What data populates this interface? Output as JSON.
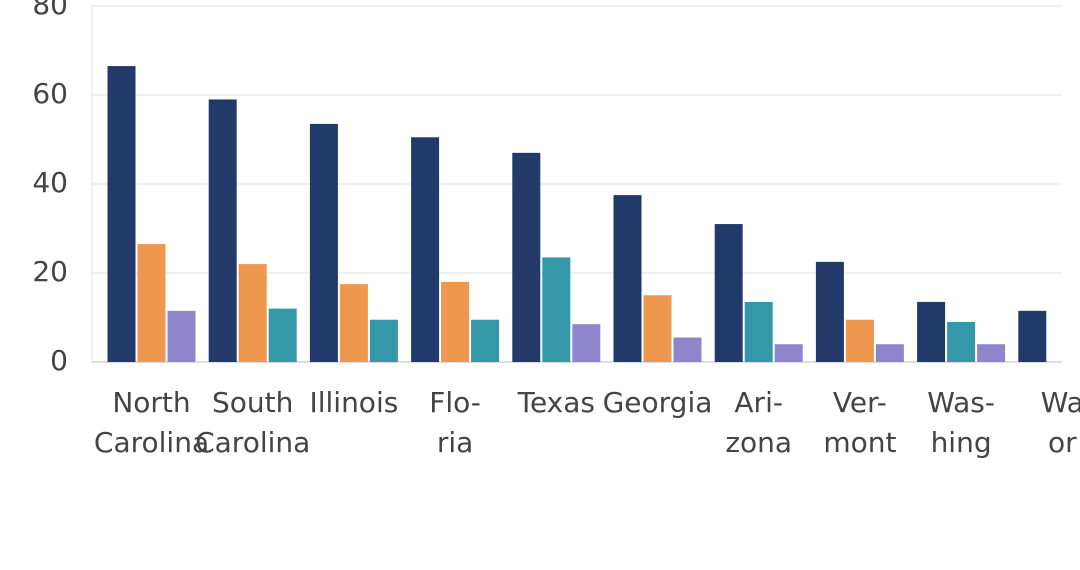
{
  "chart_data": {
    "type": "bar",
    "categories": [
      "North\nCarolina",
      "South\nCarolina",
      "Illinois",
      "Flo-\nria",
      "Texas",
      "Georgia",
      "Ari-\nzona",
      "Ver-\nmont",
      "Was-\nhing",
      "Wa\nor"
    ],
    "series": [
      {
        "colors": [
          "#213a6a",
          "#213a6a",
          "#213a6a",
          "#213a6a",
          "#213a6a",
          "#213a6a",
          "#213a6a",
          "#213a6a",
          "#213a6a",
          "#213a6a"
        ],
        "values": [
          66.5,
          59,
          53.5,
          50.5,
          47,
          37.5,
          31,
          22.5,
          13.5,
          11.5
        ]
      },
      {
        "colors": [
          "#ee974e",
          "#ee974e",
          "#ee974e",
          "#ee974e",
          "#3598a8",
          "#ee974e",
          "#3598a8",
          "#ee974e",
          "#3598a8",
          null
        ],
        "values": [
          26.5,
          22,
          17.5,
          18,
          23.5,
          15,
          13.5,
          9.5,
          9,
          null
        ]
      },
      {
        "colors": [
          "#8e85cc",
          "#3598a8",
          "#3598a8",
          "#3598a8",
          "#8e85cc",
          "#8e85cc",
          "#8e85cc",
          "#8e85cc",
          "#8e85cc",
          null
        ],
        "values": [
          11.5,
          12,
          9.5,
          9.5,
          8.5,
          5.5,
          4,
          4,
          4,
          null
        ]
      }
    ],
    "ylim": [
      0,
      80
    ],
    "yticks": [
      0,
      20,
      40,
      60,
      80
    ],
    "grid": true
  }
}
